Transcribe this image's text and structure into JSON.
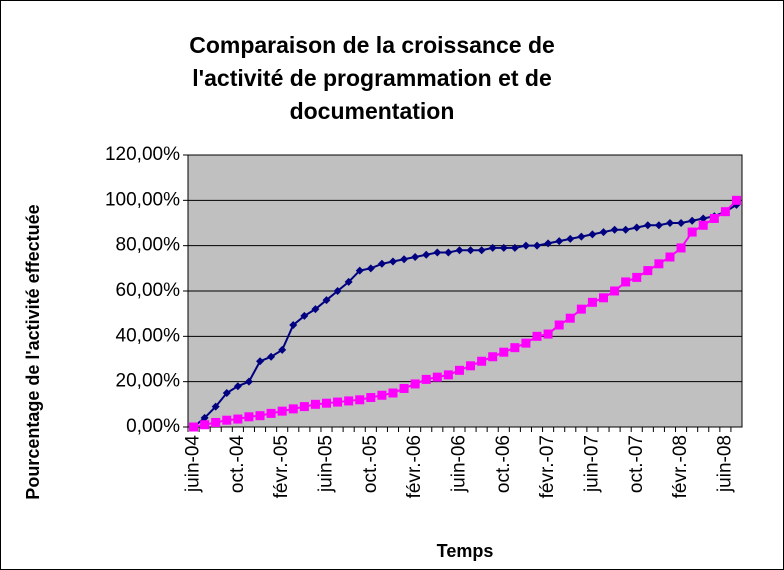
{
  "chart_data": {
    "type": "line",
    "title": [
      "Comparaison de la croissance de",
      "l'activité de programmation et de",
      "documentation"
    ],
    "x_label": "Temps",
    "y_label": "Pourcentage de l'activité effectuée",
    "categories": [
      "juin-04",
      null,
      null,
      null,
      "oct.-04",
      null,
      null,
      null,
      "févr.-05",
      null,
      null,
      null,
      "juin-05",
      null,
      null,
      null,
      "oct.-05",
      null,
      null,
      null,
      "févr.-06",
      null,
      null,
      null,
      "juin-06",
      null,
      null,
      null,
      "oct.-06",
      null,
      null,
      null,
      "févr.-07",
      null,
      null,
      null,
      "juin-07",
      null,
      null,
      null,
      "oct.-07",
      null,
      null,
      null,
      "févr.-08",
      null,
      null,
      null,
      "juin-08",
      null
    ],
    "series": [
      {
        "color": "#000080",
        "marker": "diamond",
        "values": [
          0,
          4,
          9,
          15,
          18,
          20,
          29,
          31,
          34,
          45,
          49,
          52,
          56,
          60,
          64,
          69,
          70,
          72,
          73,
          74,
          75,
          76,
          77,
          77,
          78,
          78,
          78,
          79,
          79,
          79,
          80,
          80,
          81,
          82,
          83,
          84,
          85,
          86,
          87,
          87,
          88,
          89,
          89,
          90,
          90,
          91,
          92,
          93,
          95,
          98
        ]
      },
      {
        "color": "#ff00ff",
        "marker": "square",
        "values": [
          0,
          1,
          2,
          3,
          3.5,
          4.5,
          5,
          6,
          7,
          8,
          9,
          10,
          10.5,
          11,
          11.5,
          12,
          13,
          14,
          15,
          17,
          19,
          21,
          22,
          23,
          25,
          27,
          29,
          31,
          33,
          35,
          37,
          40,
          41,
          45,
          48,
          52,
          55,
          57,
          60,
          64,
          66,
          69,
          72,
          75,
          79,
          86,
          89,
          92,
          95,
          100
        ]
      }
    ],
    "ylim": [
      0,
      120
    ],
    "yticks": [
      {
        "value": 0,
        "label": "0,00%"
      },
      {
        "value": 20,
        "label": "20,00%"
      },
      {
        "value": 40,
        "label": "40,00%"
      },
      {
        "value": 60,
        "label": "60,00%"
      },
      {
        "value": 80,
        "label": "80,00%"
      },
      {
        "value": 100,
        "label": "100,00%"
      },
      {
        "value": 120,
        "label": "120,00%"
      }
    ],
    "grid": true,
    "plot_background": "#c0c0c0"
  }
}
